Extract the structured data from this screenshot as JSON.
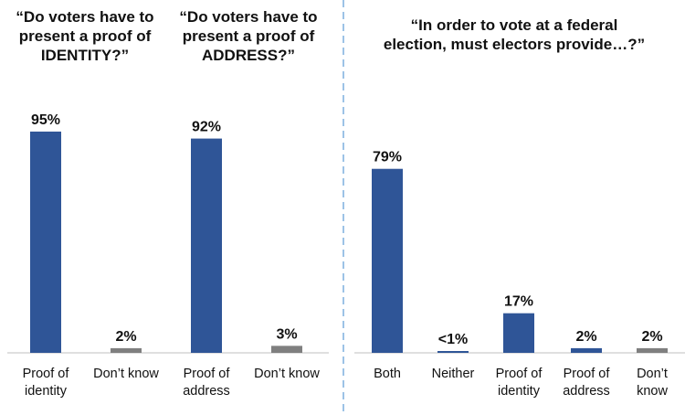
{
  "colors": {
    "primary": "#2f5597",
    "secondary": "#7f7f7f",
    "axis": "#bfbfbf",
    "divider": "#9dc3e6"
  },
  "chart_data": [
    {
      "type": "bar",
      "title": "“Do voters have to present a proof of IDENTITY?”",
      "title_lines": [
        "“Do voters have to",
        "present a proof of",
        "IDENTITY?”"
      ],
      "categories": [
        "Proof of identity",
        "Don’t know"
      ],
      "category_lines": [
        [
          "Proof of",
          "identity"
        ],
        [
          "Don’t know"
        ]
      ],
      "values": [
        95,
        2
      ],
      "value_labels": [
        "95%",
        "2%"
      ],
      "ylim": [
        0,
        100
      ]
    },
    {
      "type": "bar",
      "title": "“Do voters have to present a proof of ADDRESS?”",
      "title_lines": [
        "“Do voters have to",
        "present a proof of",
        "ADDRESS?”"
      ],
      "categories": [
        "Proof of address",
        "Don’t know"
      ],
      "category_lines": [
        [
          "Proof of",
          "address"
        ],
        [
          "Don’t know"
        ]
      ],
      "values": [
        92,
        3
      ],
      "value_labels": [
        "92%",
        "3%"
      ],
      "ylim": [
        0,
        100
      ]
    },
    {
      "type": "bar",
      "title": "“In order to vote at a federal election, must electors provide…?”",
      "title_lines": [
        "“In order to vote at a federal",
        "election, must electors provide…?”"
      ],
      "categories": [
        "Both",
        "Neither",
        "Proof of identity",
        "Proof of address",
        "Don’t know"
      ],
      "category_lines": [
        [
          "Both"
        ],
        [
          "Neither"
        ],
        [
          "Proof of",
          "identity"
        ],
        [
          "Proof of",
          "address"
        ],
        [
          "Don’t",
          "know"
        ]
      ],
      "values": [
        79,
        0.5,
        17,
        2,
        2
      ],
      "value_labels": [
        "79%",
        "<1%",
        "17%",
        "2%",
        "2%"
      ],
      "ylim": [
        0,
        100
      ]
    }
  ]
}
